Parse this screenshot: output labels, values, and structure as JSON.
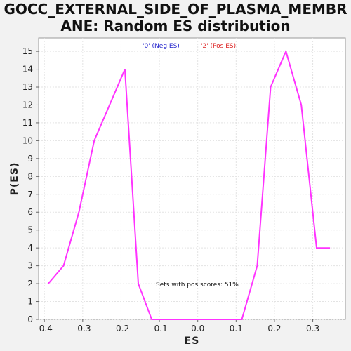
{
  "title_lines": [
    "GOCC_EXTERNAL_SIDE_OF_PLASMA_MEMBR",
    "ANE: Random ES distribution"
  ],
  "chart_data": {
    "type": "line",
    "title": "GOCC_EXTERNAL_SIDE_OF_PLASMA_MEMBRANE: Random ES distribution",
    "xlabel": "ES",
    "ylabel": "P(ES)",
    "xlim": [
      -0.415,
      0.385
    ],
    "ylim": [
      0,
      15.75
    ],
    "xticks": [
      -0.4,
      -0.3,
      -0.2,
      -0.1,
      0.0,
      0.1,
      0.2,
      0.3
    ],
    "xtick_labels": [
      "-0.4",
      "-0.3",
      "-0.2",
      "-0.1",
      "0.0",
      "0.1",
      "0.2",
      "0.3"
    ],
    "yticks": [
      0,
      1,
      2,
      3,
      4,
      5,
      6,
      7,
      8,
      9,
      10,
      11,
      12,
      13,
      14,
      15
    ],
    "grid": true,
    "legend": [
      {
        "label": "'0' (Neg ES)",
        "color": "#2222cc"
      },
      {
        "label": "'2' (Pos ES)",
        "color": "#dd2222"
      }
    ],
    "annotation": "Sets with pos scores: 51%",
    "series": [
      {
        "color": "#ff33ff",
        "x": [
          -0.39,
          -0.35,
          -0.31,
          -0.27,
          -0.23,
          -0.19,
          -0.155,
          -0.12,
          -0.08,
          -0.04,
          0.0,
          0.04,
          0.08,
          0.115,
          0.155,
          0.19,
          0.23,
          0.27,
          0.31,
          0.345
        ],
        "y": [
          2,
          3,
          6,
          10,
          12,
          14,
          2,
          0,
          0,
          0,
          0,
          0,
          0,
          0,
          3,
          13,
          15,
          12,
          4,
          4
        ]
      }
    ]
  }
}
